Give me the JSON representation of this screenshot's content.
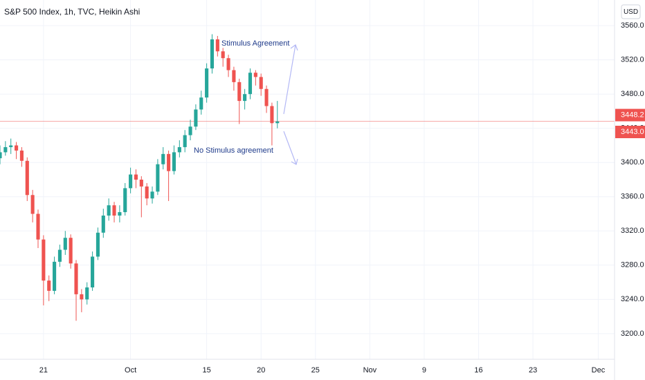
{
  "chart_data": {
    "type": "candlestick",
    "title": "S&P 500 Index, 1h, TVC, Heikin Ashi",
    "currency": "USD",
    "up_color": "#26a69a",
    "down_color": "#ef5350",
    "grid": true,
    "x": [
      -4,
      -3.5,
      -3,
      -2.5,
      -2,
      -1.5,
      -1,
      -0.5,
      0,
      0.5,
      1,
      1.5,
      2,
      2.5,
      3,
      3.5,
      4,
      4.5,
      5,
      5.5,
      6,
      6.5,
      7,
      7.5,
      8,
      8.5,
      9,
      9.5,
      10,
      10.5,
      11,
      11.5,
      12,
      12.5,
      13,
      13.5,
      14,
      14.5,
      15,
      15.5,
      16,
      16.5,
      17,
      17.5,
      18,
      18.5,
      19,
      19.5,
      20,
      20.5,
      21,
      21.5
    ],
    "open": [
      3405,
      3412,
      3418,
      3420,
      3414,
      3402,
      3362,
      3340,
      3310,
      3262,
      3250,
      3284,
      3298,
      3312,
      3282,
      3246,
      3240,
      3254,
      3290,
      3318,
      3338,
      3350,
      3338,
      3342,
      3370,
      3386,
      3380,
      3372,
      3358,
      3366,
      3398,
      3410,
      3390,
      3412,
      3418,
      3432,
      3442,
      3462,
      3476,
      3510,
      3544,
      3530,
      3522,
      3508,
      3494,
      3472,
      3480,
      3505,
      3500,
      3486,
      3466,
      3446
    ],
    "high": [
      3420,
      3425,
      3428,
      3424,
      3418,
      3406,
      3368,
      3345,
      3315,
      3268,
      3290,
      3304,
      3320,
      3316,
      3286,
      3252,
      3260,
      3296,
      3324,
      3346,
      3358,
      3354,
      3350,
      3376,
      3394,
      3392,
      3384,
      3376,
      3372,
      3404,
      3418,
      3414,
      3420,
      3426,
      3438,
      3450,
      3468,
      3484,
      3516,
      3550,
      3548,
      3534,
      3526,
      3512,
      3498,
      3486,
      3510,
      3508,
      3504,
      3490,
      3470,
      3472
    ],
    "low": [
      3398,
      3408,
      3410,
      3404,
      3395,
      3355,
      3330,
      3300,
      3233,
      3238,
      3246,
      3278,
      3292,
      3276,
      3215,
      3225,
      3234,
      3250,
      3286,
      3312,
      3332,
      3330,
      3330,
      3338,
      3364,
      3370,
      3336,
      3350,
      3352,
      3362,
      3392,
      3355,
      3386,
      3406,
      3412,
      3426,
      3438,
      3456,
      3470,
      3504,
      3524,
      3512,
      3500,
      3484,
      3445,
      3462,
      3474,
      3490,
      3478,
      3458,
      3420,
      3440
    ],
    "close": [
      3412,
      3418,
      3420,
      3414,
      3402,
      3362,
      3340,
      3310,
      3262,
      3250,
      3284,
      3298,
      3312,
      3282,
      3246,
      3240,
      3254,
      3290,
      3318,
      3338,
      3350,
      3338,
      3342,
      3370,
      3386,
      3380,
      3372,
      3358,
      3366,
      3398,
      3410,
      3390,
      3412,
      3418,
      3432,
      3442,
      3462,
      3476,
      3510,
      3544,
      3530,
      3522,
      3508,
      3494,
      3472,
      3480,
      3505,
      3500,
      3486,
      3466,
      3446,
      3448
    ],
    "xlim": [
      -4,
      52.5
    ],
    "xticks": [
      {
        "value": 0,
        "label": "21"
      },
      {
        "value": 8,
        "label": "Oct"
      },
      15,
      20,
      25,
      {
        "value": 30,
        "label": "Nov"
      },
      {
        "value": 35,
        "label": "9"
      },
      {
        "value": 40,
        "label": "16"
      },
      {
        "value": 45,
        "label": "23"
      },
      {
        "value": 51,
        "label": "Dec"
      }
    ],
    "ylim": [
      3170,
      3590
    ],
    "yticks": [
      {
        "value": 3200,
        "label": "3200.0"
      },
      {
        "value": 3240,
        "label": "3240.0"
      },
      {
        "value": 3280,
        "label": "3280.0"
      },
      {
        "value": 3320,
        "label": "3320.0"
      },
      {
        "value": 3360,
        "label": "3360.0"
      },
      {
        "value": 3400,
        "label": "3400.0"
      },
      {
        "value": 3440,
        "label": "3440.0"
      },
      {
        "value": 3480,
        "label": "3480.0"
      },
      {
        "value": 3520,
        "label": "3520.0"
      },
      {
        "value": 3560,
        "label": "3560.0"
      }
    ],
    "price_labels": [
      3448.2,
      {
        "value": 3443.0,
        "label": "3443.0"
      }
    ],
    "annotations": [
      "Stimulus Agreement",
      "No Stimulus agreement"
    ]
  }
}
